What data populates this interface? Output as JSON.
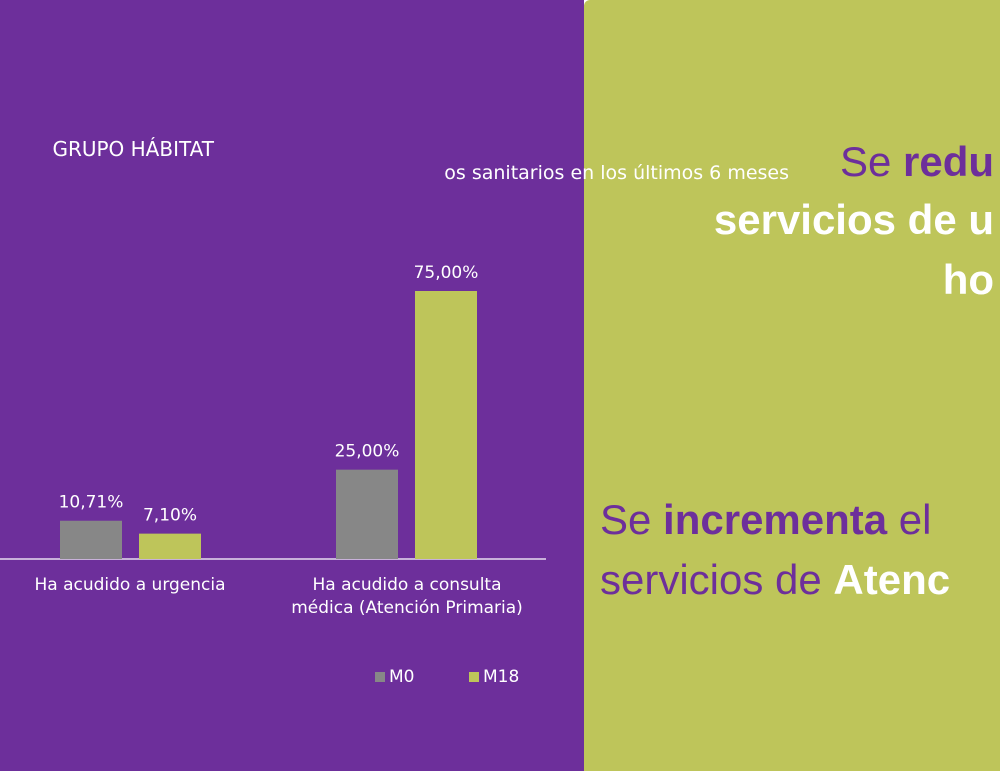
{
  "colors": {
    "panel_left": "#6D2F9B",
    "panel_right": "#BEC55A",
    "series_m0": "#878787",
    "series_m18": "#BEC55A",
    "text": "#FFFFFF",
    "accent": "#6D2F9B"
  },
  "chart_data": {
    "type": "bar",
    "title": "GRUPO HÁBITAT",
    "subtitle": "os sanitarios en los últimos 6 meses",
    "categories": [
      "Ha acudido a urgencia",
      "Ha acudido a consulta médica (Atención Primaria)"
    ],
    "category_label_lines": [
      [
        "Ha acudido a urgencia"
      ],
      [
        "Ha acudido a consulta",
        "médica (Atención Primaria)"
      ]
    ],
    "series": [
      {
        "name": "M0",
        "values": [
          10.71,
          25.0
        ],
        "labels": [
          "10,71%",
          "25,00%"
        ]
      },
      {
        "name": "M18",
        "values": [
          7.1,
          75.0
        ],
        "labels": [
          "7,10%",
          "75,00%"
        ]
      }
    ],
    "ylim": [
      0,
      75
    ],
    "grid": false,
    "legend_position": "bottom-right"
  },
  "headlines": {
    "line1_a": "Se ",
    "line1_b": "redu",
    "line2": "servicios de u",
    "line3": "ho",
    "line4_a": "Se ",
    "line4_b": "incrementa",
    "line4_c": " el",
    "line5_a": "servicios de ",
    "line5_b": "Atenc"
  }
}
